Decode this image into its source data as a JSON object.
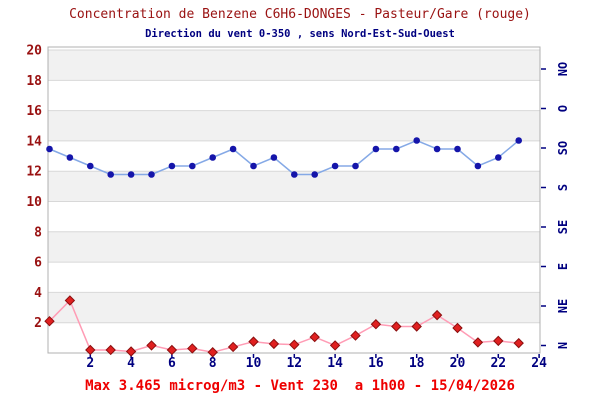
{
  "chart_data": {
    "type": "line",
    "title": "Concentration de Benzene C6H6-DONGES - Pasteur/Gare (rouge)",
    "subtitle": "Direction du vent 0-350 , sens Nord-Est-Sud-Ouest",
    "footer": "Max 3.465 microg/m3 - Vent 230  a 1h00 - 15/04/2026",
    "x": [
      0,
      1,
      2,
      3,
      4,
      5,
      6,
      7,
      8,
      9,
      10,
      11,
      12,
      13,
      14,
      15,
      16,
      17,
      18,
      19,
      20,
      21,
      22,
      23
    ],
    "x_axis": {
      "tick_labels": [
        2,
        4,
        6,
        8,
        10,
        12,
        14,
        16,
        18,
        20,
        22,
        24
      ],
      "range": [
        0,
        24
      ]
    },
    "left_axis": {
      "ticks": [
        2,
        4,
        6,
        8,
        10,
        12,
        14,
        16,
        18,
        20
      ],
      "range": [
        0,
        20.2
      ],
      "color": "#991111"
    },
    "right_axis": {
      "labels": [
        "NO",
        "O",
        "SO",
        "S",
        "SE",
        "E",
        "NE",
        "N"
      ],
      "range_deg": [
        0,
        360
      ],
      "color": "#000080"
    },
    "series": [
      {
        "name": "benzene-concentration",
        "axis": "left",
        "marker": "diamond",
        "line_color": "#ff9cb5",
        "marker_color": "#e02020",
        "marker_edge": "#8b0f0f",
        "values": [
          2.1,
          3.465,
          0.2,
          0.2,
          0.1,
          0.5,
          0.2,
          0.3,
          0.05,
          0.4,
          0.75,
          0.6,
          0.55,
          1.05,
          0.5,
          1.15,
          1.9,
          1.75,
          1.75,
          2.5,
          1.65,
          0.7,
          0.8,
          0.65
        ]
      },
      {
        "name": "wind-direction",
        "axis": "right",
        "marker": "circle",
        "line_color": "#85a9e6",
        "marker_color": "#1515aa",
        "values": [
          240,
          230,
          220,
          210,
          210,
          210,
          220,
          220,
          230,
          240,
          220,
          230,
          210,
          210,
          220,
          220,
          240,
          240,
          250,
          240,
          240,
          220,
          230,
          250
        ]
      }
    ],
    "plot": {
      "band_color": "#f1f1f1",
      "grid_color": "#d8d8d8",
      "border_color": "#b0b0b0",
      "background": "#ffffff"
    }
  }
}
